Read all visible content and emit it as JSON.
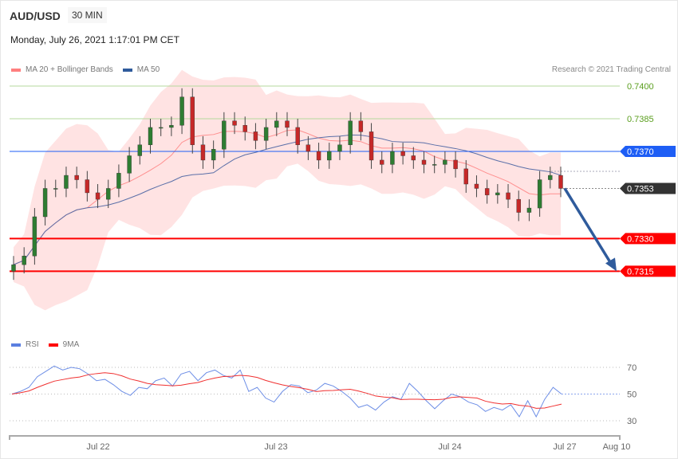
{
  "header": {
    "symbol": "AUD/USD",
    "timeframe": "30 MIN",
    "datetime": "Monday, July 26, 2021 1:17:01 PM CET",
    "credit": "Research © 2021 Trading Central"
  },
  "legend": {
    "main": [
      {
        "label": "MA 20 + Bollinger Bands",
        "color": "#ff7f7f"
      },
      {
        "label": "MA 50",
        "color": "#2f5b9c"
      }
    ],
    "rsi": [
      {
        "label": "RSI",
        "color": "#5b7fe0"
      },
      {
        "label": "9MA",
        "color": "#ff0000"
      }
    ]
  },
  "chart_data": [
    {
      "type": "candlestick",
      "ylim": [
        0.73,
        0.7405
      ],
      "close": [
        0.7318,
        0.7322,
        0.734,
        0.7353,
        0.7353,
        0.7359,
        0.7357,
        0.7351,
        0.7348,
        0.7353,
        0.736,
        0.7368,
        0.7373,
        0.7381,
        0.7381,
        0.7382,
        0.7395,
        0.7373,
        0.7366,
        0.7371,
        0.7384,
        0.7382,
        0.7379,
        0.7375,
        0.7381,
        0.7384,
        0.7381,
        0.7373,
        0.737,
        0.7366,
        0.737,
        0.7373,
        0.7384,
        0.7379,
        0.7366,
        0.7364,
        0.737,
        0.7368,
        0.7366,
        0.7364,
        0.7364,
        0.7366,
        0.7362,
        0.7355,
        0.7353,
        0.735,
        0.7351,
        0.7348,
        0.7342,
        0.7344,
        0.7357,
        0.7359,
        0.7353
      ],
      "levels": [
        {
          "value": "0.7400",
          "color": "#7ab648",
          "style": "resistance-label"
        },
        {
          "value": "0.7385",
          "color": "#7ab648",
          "style": "resistance-label"
        },
        {
          "value": "0.7370",
          "color": "#1e5ef5",
          "style": "pivot"
        },
        {
          "value": "0.7353",
          "color": "#333333",
          "style": "last-price"
        },
        {
          "value": "0.7330",
          "color": "#ff0000",
          "style": "support"
        },
        {
          "value": "0.7315",
          "color": "#ff0000",
          "style": "support"
        }
      ],
      "target_arrow": {
        "from": 0.7353,
        "to": 0.7315,
        "color": "#2f5b9c"
      },
      "x_ticks": [
        "Jul 22",
        "Jul 23",
        "Jul 24",
        "Jul 27",
        "Aug 10"
      ]
    },
    {
      "type": "line",
      "name": "RSI",
      "ylim": [
        20,
        80
      ],
      "y_ticks": [
        "70",
        "50",
        "30"
      ],
      "rsi": [
        50,
        52,
        55,
        63,
        67,
        71,
        68,
        70,
        69,
        65,
        60,
        61,
        57,
        52,
        49,
        55,
        54,
        60,
        62,
        56,
        65,
        67,
        60,
        66,
        68,
        64,
        62,
        68,
        52,
        55,
        47,
        44,
        52,
        57,
        56,
        51,
        53,
        58,
        56,
        52,
        47,
        40,
        42,
        38,
        44,
        48,
        46,
        58,
        52,
        45,
        39,
        45,
        50,
        48,
        44,
        42,
        37,
        40,
        38,
        42,
        33,
        45,
        33,
        46,
        55,
        50
      ]
    }
  ]
}
